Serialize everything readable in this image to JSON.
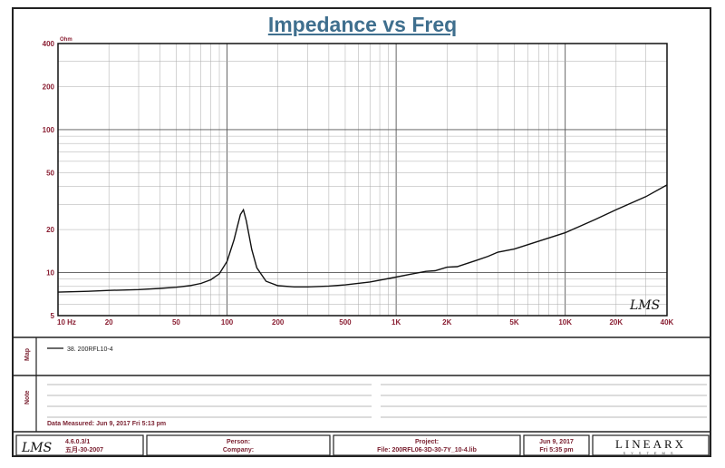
{
  "chart_data": {
    "type": "line",
    "title": "Impedance vs Freq",
    "y_unit": "Ohm",
    "x_scale": "log",
    "y_scale": "log",
    "xlim": [
      10,
      40000
    ],
    "ylim": [
      5,
      400
    ],
    "x_ticks": [
      {
        "value": 10,
        "label": "10 Hz"
      },
      {
        "value": 20,
        "label": "20"
      },
      {
        "value": 50,
        "label": "50"
      },
      {
        "value": 100,
        "label": "100"
      },
      {
        "value": 200,
        "label": "200"
      },
      {
        "value": 500,
        "label": "500"
      },
      {
        "value": 1000,
        "label": "1K"
      },
      {
        "value": 2000,
        "label": "2K"
      },
      {
        "value": 5000,
        "label": "5K"
      },
      {
        "value": 10000,
        "label": "10K"
      },
      {
        "value": 20000,
        "label": "20K"
      },
      {
        "value": 40000,
        "label": "40K"
      }
    ],
    "y_ticks": [
      {
        "value": 5,
        "label": "5"
      },
      {
        "value": 10,
        "label": "10"
      },
      {
        "value": 20,
        "label": "20"
      },
      {
        "value": 50,
        "label": "50"
      },
      {
        "value": 100,
        "label": "100"
      },
      {
        "value": 200,
        "label": "200"
      },
      {
        "value": 400,
        "label": "400"
      }
    ],
    "series": [
      {
        "name": "38. 200RFL10-4",
        "color": "#111111",
        "x": [
          10,
          15,
          20,
          30,
          40,
          50,
          60,
          70,
          80,
          90,
          100,
          110,
          115,
          120,
          125,
          130,
          140,
          150,
          170,
          200,
          250,
          300,
          400,
          500,
          700,
          1000,
          1200,
          1500,
          1700,
          2000,
          2300,
          3000,
          3500,
          4000,
          5000,
          7000,
          10000,
          15000,
          20000,
          30000,
          40000
        ],
        "values": [
          7.3,
          7.4,
          7.5,
          7.6,
          7.75,
          7.9,
          8.1,
          8.4,
          8.9,
          9.8,
          12.0,
          17.0,
          21.0,
          25.5,
          27.5,
          23.0,
          14.5,
          10.8,
          8.7,
          8.1,
          7.95,
          7.95,
          8.05,
          8.2,
          8.6,
          9.3,
          9.7,
          10.2,
          10.3,
          10.9,
          11.0,
          12.2,
          13.0,
          13.9,
          14.6,
          16.6,
          19.0,
          23.5,
          27.5,
          34.0,
          41.0
        ]
      }
    ],
    "grid": true,
    "legend": "left"
  },
  "header": {
    "title": "Impedance vs Freq",
    "unit": "Ohm"
  },
  "legend": {
    "label": "Map",
    "entry": "38. 200RFL10-4"
  },
  "notes": {
    "label": "Note",
    "measured": "Data Measured: Jun 9, 2017   Fri  5:13 pm"
  },
  "footer": {
    "logo": "LMS",
    "version": "4.6.0.3/1",
    "code": "五月-30-2007",
    "person": "Person:",
    "company": "Company:",
    "project": "Project:",
    "file": "File: 200RFL06-3D-30-7Y_10-4.lib",
    "date": "Jun 9, 2017",
    "time": "Fri  5:35 pm",
    "brand": "LINEARX",
    "brand_sub": "SYSTEMS"
  },
  "watermark": "LMS"
}
